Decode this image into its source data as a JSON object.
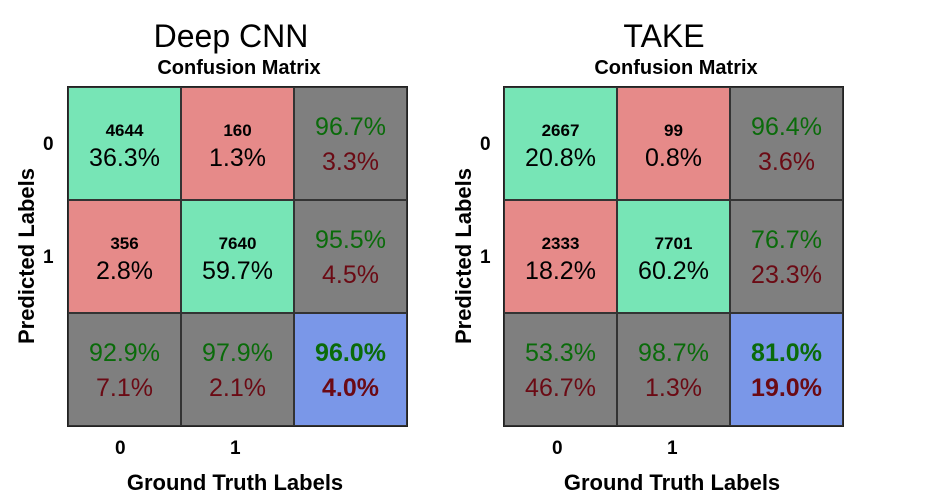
{
  "chart_data": [
    {
      "type": "heatmap",
      "title": "Deep CNN",
      "subtitle": "Confusion Matrix",
      "xlabel": "Ground Truth Labels",
      "ylabel": "Predicted Labels",
      "x_ticks": [
        "0",
        "1"
      ],
      "y_ticks": [
        "0",
        "1"
      ],
      "matrix": [
        [
          {
            "count": "4644",
            "pct": "36.3%"
          },
          {
            "count": "160",
            "pct": "1.3%"
          }
        ],
        [
          {
            "count": "356",
            "pct": "2.8%"
          },
          {
            "count": "7640",
            "pct": "59.7%"
          }
        ]
      ],
      "row_summary": [
        {
          "correct": "96.7%",
          "error": "3.3%"
        },
        {
          "correct": "95.5%",
          "error": "4.5%"
        }
      ],
      "col_summary": [
        {
          "correct": "92.9%",
          "error": "7.1%"
        },
        {
          "correct": "97.9%",
          "error": "2.1%"
        }
      ],
      "overall": {
        "correct": "96.0%",
        "error": "4.0%"
      }
    },
    {
      "type": "heatmap",
      "title": "TAKE",
      "subtitle": "Confusion Matrix",
      "xlabel": "Ground Truth Labels",
      "ylabel": "Predicted Labels",
      "x_ticks": [
        "0",
        "1"
      ],
      "y_ticks": [
        "0",
        "1"
      ],
      "matrix": [
        [
          {
            "count": "2667",
            "pct": "20.8%"
          },
          {
            "count": "99",
            "pct": "0.8%"
          }
        ],
        [
          {
            "count": "2333",
            "pct": "18.2%"
          },
          {
            "count": "7701",
            "pct": "60.2%"
          }
        ]
      ],
      "row_summary": [
        {
          "correct": "96.4%",
          "error": "3.6%"
        },
        {
          "correct": "76.7%",
          "error": "23.3%"
        }
      ],
      "col_summary": [
        {
          "correct": "53.3%",
          "error": "46.7%"
        },
        {
          "correct": "98.7%",
          "error": "1.3%"
        }
      ],
      "overall": {
        "correct": "81.0%",
        "error": "19.0%"
      }
    }
  ],
  "colors": {
    "correct_cell": "#77e5b6",
    "error_cell": "#e68a89",
    "summary_cell": "#7f7f7f",
    "overall_cell": "#7a97e8",
    "correct_text": "#0a6b0a",
    "error_text": "#6b0a14"
  }
}
